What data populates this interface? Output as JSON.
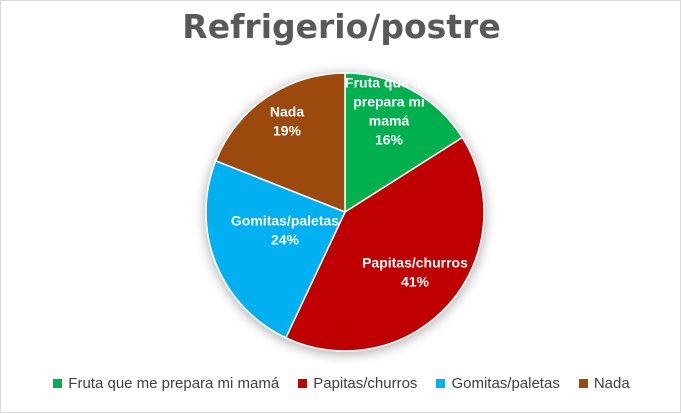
{
  "chart_data": {
    "type": "pie",
    "title": "Refrigerio/postre",
    "legend_position": "bottom",
    "slices": [
      {
        "label": "Fruta que me prepara mi mamá",
        "value": 16,
        "value_label": "16%",
        "color": "#00b050",
        "label_lines": [
          "Fruta que me",
          "prepara mi",
          "mamá"
        ]
      },
      {
        "label": "Papitas/churros",
        "value": 41,
        "value_label": "41%",
        "color": "#c00000",
        "label_lines": [
          "Papitas/churros"
        ]
      },
      {
        "label": "Gomitas/paletas",
        "value": 24,
        "value_label": "24%",
        "color": "#00b0f0",
        "label_lines": [
          "Gomitas/paletas"
        ]
      },
      {
        "label": "Nada",
        "value": 19,
        "value_label": "19%",
        "color": "#9c4a0a",
        "label_lines": [
          "Nada"
        ]
      }
    ]
  }
}
